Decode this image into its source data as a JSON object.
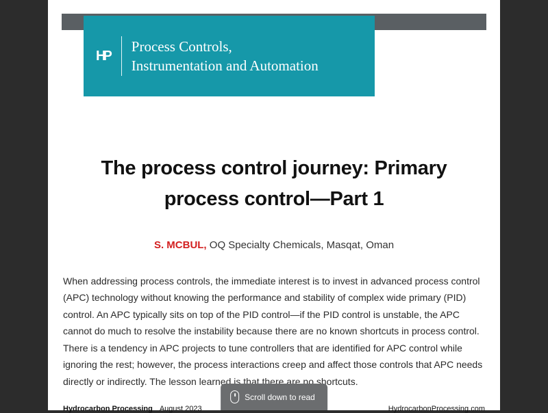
{
  "colors": {
    "page_bg": "#2c2c2c",
    "paper_bg": "#ffffff",
    "gray_bar": "#5a5f63",
    "teal_banner": "#1698a9",
    "author_red": "#d32020",
    "scroll_pill": "#6b6d6f",
    "text": "#2a2a2a"
  },
  "banner": {
    "logo_text": "HP",
    "section_line1": "Process Controls,",
    "section_line2": "Instrumentation and Automation"
  },
  "article": {
    "title": "The process control journey: Primary process control—Part 1",
    "author_name": "S. MCBUL,",
    "author_affiliation": " OQ Specialty Chemicals, Masqat, Oman",
    "body": "When addressing process controls, the immediate interest is to invest in advanced process control (APC) technology without knowing the performance and stability of complex wide primary (PID) control. An APC typically sits on top of the PID control—if the PID control is unstable, the APC cannot do much to resolve the instability because there are no known shortcuts in process control. There is a tendency in APC projects to tune controllers that are identified for APC control while ignoring the rest; however, the process interactions creep and affect those controls that APC needs directly or indirectly. The lesson learned is that there are no shortcuts."
  },
  "footer": {
    "publication": "Hydrocarbon Processing",
    "issue_date": "August 2023",
    "website": "HydrocarbonProcessing.com"
  },
  "scroll_hint": {
    "label": "Scroll down to read"
  }
}
